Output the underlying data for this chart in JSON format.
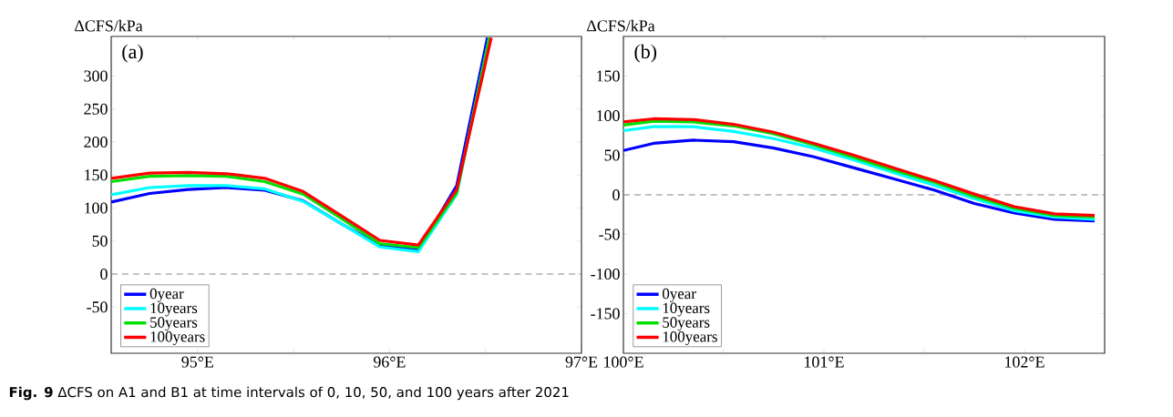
{
  "chart_data": [
    {
      "type": "line",
      "ylabel": "ΔCFS/kPa",
      "annotations": [
        "(a)",
        "**Fig. 9**  ΔCFS on A1 and B1 at time intervals of 0, 10, 50, and 100 years after 2021"
      ],
      "xlim": [
        94.55,
        97
      ],
      "ylim": [
        -120,
        360
      ],
      "xticks": [
        {
          "value": 95,
          "label": "95°E"
        },
        {
          "value": 95.5,
          "label": null
        },
        {
          "value": 96,
          "label": "96°E"
        },
        {
          "value": 96.5,
          "label": null
        },
        {
          "value": 97,
          "label": "97°E"
        }
      ],
      "yticks": [
        -50,
        0,
        50,
        100,
        150,
        200,
        250,
        300
      ],
      "series": [
        {
          "name": "0year",
          "color": "#0000ff",
          "x": [
            94.55,
            94.75,
            94.95,
            95.15,
            95.35,
            95.55,
            95.75,
            95.95,
            96.15,
            96.35,
            96.51
          ],
          "values": [
            109,
            122,
            128,
            131,
            127,
            111,
            76,
            43,
            36,
            134,
            358
          ]
        },
        {
          "name": "10years",
          "color": "#00ffff",
          "x": [
            94.55,
            94.75,
            94.95,
            95.15,
            95.35,
            95.55,
            95.75,
            95.95,
            96.15,
            96.35,
            96.52
          ],
          "values": [
            120,
            131,
            134,
            134,
            129,
            110,
            76,
            41,
            34,
            121,
            358
          ]
        },
        {
          "name": "50years",
          "color": "#00e000",
          "x": [
            94.55,
            94.75,
            94.95,
            95.15,
            95.35,
            95.55,
            95.75,
            95.95,
            96.15,
            96.35,
            96.52
          ],
          "values": [
            140,
            148,
            149,
            148,
            140,
            121,
            84,
            46,
            40,
            123,
            358
          ]
        },
        {
          "name": "100years",
          "color": "#ff0000",
          "x": [
            94.55,
            94.75,
            94.95,
            95.15,
            95.35,
            95.55,
            95.75,
            95.95,
            96.15,
            96.35,
            96.53
          ],
          "values": [
            145,
            153,
            154,
            152,
            145,
            125,
            88,
            51,
            44,
            128,
            358
          ]
        }
      ],
      "ref_lines": [
        {
          "axis": "y",
          "value": 0,
          "line_style": "dashed",
          "color": "#888888"
        }
      ],
      "legend": "bottom left",
      "grid": false,
      "marker": "none",
      "line_style": "solid"
    },
    {
      "type": "line",
      "ylabel": "ΔCFS/kPa",
      "annotations": [
        "(b)"
      ],
      "xlim": [
        100,
        102.4
      ],
      "ylim": [
        -200,
        200
      ],
      "xticks": [
        {
          "value": 100,
          "label": "100°E"
        },
        {
          "value": 100.5,
          "label": null
        },
        {
          "value": 101,
          "label": "101°E"
        },
        {
          "value": 101.5,
          "label": null
        },
        {
          "value": 102,
          "label": "102°E"
        }
      ],
      "yticks": [
        -150,
        -100,
        -50,
        0,
        50,
        100,
        150
      ],
      "x": [
        100,
        100.15,
        100.35,
        100.55,
        100.75,
        100.95,
        101.15,
        101.35,
        101.55,
        101.75,
        101.95,
        102.15,
        102.35
      ],
      "series": [
        {
          "name": "0year",
          "color": "#0000ff",
          "values": [
            56,
            65,
            69,
            67,
            59,
            48,
            34,
            20,
            6,
            -11,
            -23,
            -31,
            -33
          ]
        },
        {
          "name": "10years",
          "color": "#00ffff",
          "values": [
            81,
            86,
            86,
            80,
            71,
            59,
            44,
            28,
            12,
            -5,
            -20,
            -28,
            -31
          ]
        },
        {
          "name": "50years",
          "color": "#00e000",
          "values": [
            88,
            93,
            92,
            87,
            77,
            63,
            47,
            31,
            16,
            -2,
            -17,
            -26,
            -28
          ]
        },
        {
          "name": "100years",
          "color": "#ff0000",
          "values": [
            92,
            96,
            95,
            89,
            79,
            65,
            50,
            34,
            18,
            1,
            -15,
            -24,
            -26
          ]
        }
      ],
      "ref_lines": [
        {
          "axis": "y",
          "value": 0,
          "line_style": "dashed",
          "color": "#888888"
        }
      ],
      "legend": "bottom left",
      "grid": false,
      "marker": "none",
      "line_style": "solid"
    }
  ]
}
